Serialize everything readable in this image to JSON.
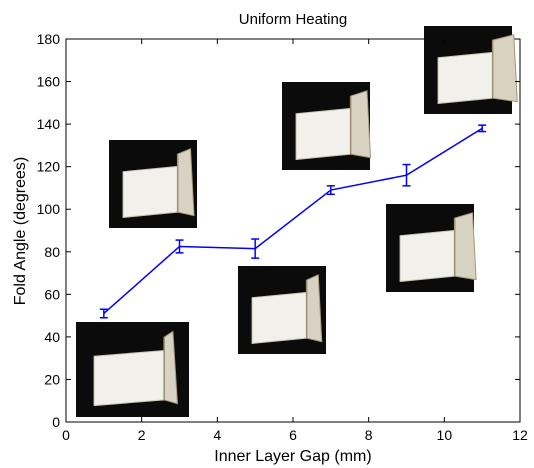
{
  "chart_data": {
    "type": "line",
    "title": "Uniform Heating",
    "xlabel": "Inner Layer Gap (mm)",
    "ylabel": "Fold Angle (degrees)",
    "xlim": [
      0,
      12
    ],
    "ylim": [
      0,
      180
    ],
    "xticks": [
      0,
      2,
      4,
      6,
      8,
      10,
      12
    ],
    "yticks": [
      0,
      20,
      40,
      60,
      80,
      100,
      120,
      140,
      160,
      180
    ],
    "grid": false,
    "legend": "none",
    "series": [
      {
        "color": "#0000ff",
        "x": [
          1,
          3,
          5,
          7,
          9,
          11
        ],
        "y": [
          51,
          82.5,
          81.5,
          109,
          116,
          138
        ],
        "error": [
          2,
          3,
          4.5,
          2,
          5,
          1.5
        ]
      }
    ],
    "insets": [
      {
        "icon": "folded-card-photo-40deg"
      },
      {
        "icon": "folded-card-photo-90deg"
      },
      {
        "icon": "folded-card-photo-80deg"
      },
      {
        "icon": "folded-card-photo-110deg"
      },
      {
        "icon": "folded-card-photo-120deg"
      },
      {
        "icon": "folded-card-photo-140deg"
      }
    ]
  }
}
